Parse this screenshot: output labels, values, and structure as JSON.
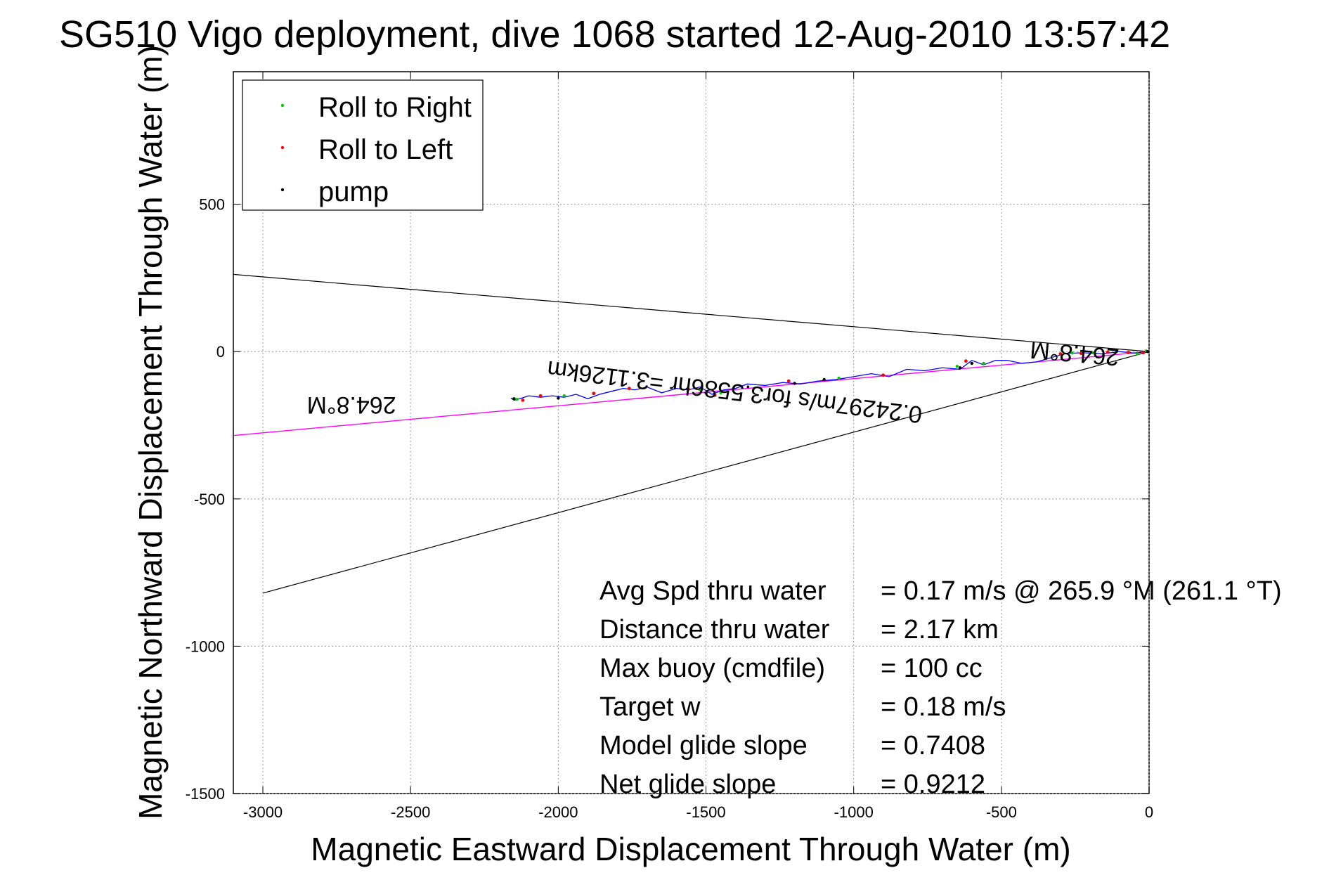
{
  "chart_data": {
    "type": "scatter",
    "title": "SG510 Vigo deployment, dive 1068 started 12-Aug-2010 13:57:42",
    "xlabel": "Magnetic Eastward Displacement Through Water (m)",
    "ylabel": "Magnetic Northward Displacement Through Water (m)",
    "xlim": [
      -3100,
      0
    ],
    "ylim": [
      -1500,
      950
    ],
    "xticks": [
      -3000,
      -2500,
      -2000,
      -1500,
      -1000,
      -500,
      0
    ],
    "yticks": [
      -1500,
      -1000,
      -500,
      0,
      500
    ],
    "grid": true,
    "legend_position": "top-left",
    "legend": [
      {
        "label": "Roll to Right",
        "color": "#00cc00"
      },
      {
        "label": "Roll to Left",
        "color": "#ff0000"
      },
      {
        "label": "pump",
        "color": "#000000"
      }
    ],
    "cone_lines": [
      {
        "color": "#000000",
        "x": [
          -3100,
          0
        ],
        "y": [
          262,
          0
        ]
      },
      {
        "color": "#000000",
        "x": [
          -3000,
          0
        ],
        "y": [
          -820,
          0
        ]
      }
    ],
    "heading_line": {
      "color": "#ff00ff",
      "x": [
        -3100,
        0
      ],
      "y": [
        -285,
        0
      ]
    },
    "track": {
      "color": "#0000ff",
      "x": [
        0,
        -50,
        -100,
        -160,
        -220,
        -280,
        -330,
        -380,
        -430,
        -480,
        -520,
        -560,
        -600,
        -640,
        -700,
        -760,
        -820,
        -880,
        -940,
        -1000,
        -1060,
        -1120,
        -1180,
        -1240,
        -1300,
        -1360,
        -1400,
        -1440,
        -1480,
        -1520,
        -1560,
        -1600,
        -1650,
        -1700,
        -1740,
        -1780,
        -1820,
        -1860,
        -1900,
        -1940,
        -1980,
        -2020,
        -2060,
        -2100,
        -2130,
        -2150,
        -2160
      ],
      "y": [
        0,
        -5,
        0,
        -8,
        -4,
        -6,
        -20,
        -35,
        -40,
        -30,
        -30,
        -45,
        -30,
        -60,
        -55,
        -65,
        -60,
        -85,
        -75,
        -85,
        -95,
        -100,
        -110,
        -105,
        -115,
        -110,
        -125,
        -130,
        -145,
        -120,
        -130,
        -125,
        -140,
        -120,
        -130,
        -125,
        -135,
        -145,
        -160,
        -145,
        -155,
        -150,
        -155,
        -150,
        -160,
        -165,
        -158
      ]
    },
    "markers": {
      "roll_right": {
        "color": "#00cc00",
        "x": [
          -10,
          -40,
          -110,
          -190,
          -260,
          -560,
          -650,
          -1050,
          -1450,
          -1520,
          -1980,
          -2140
        ],
        "y": [
          2,
          -8,
          0,
          -4,
          -5,
          -40,
          -50,
          -90,
          -140,
          -130,
          -150,
          -162
        ]
      },
      "roll_left": {
        "color": "#ff0000",
        "x": [
          -20,
          -70,
          -140,
          -230,
          -300,
          -620,
          -900,
          -1220,
          -1470,
          -1560,
          -1760,
          -1880,
          -2060,
          -2120
        ],
        "y": [
          -4,
          -3,
          -2,
          -6,
          -8,
          -32,
          -80,
          -100,
          -148,
          -128,
          -125,
          -142,
          -150,
          -165
        ],
        "size": 2.4
      },
      "pump": {
        "color": "#000000",
        "x": [
          -5,
          -600,
          -640,
          -1100,
          -1200,
          -1500,
          -2000,
          -2150
        ],
        "y": [
          0,
          -40,
          -55,
          -95,
          -108,
          -140,
          -158,
          -160
        ]
      }
    },
    "annotations": [
      {
        "text": "264.8°M",
        "x": -2700,
        "y": -155,
        "rotate": 180
      },
      {
        "text": "264.8°M",
        "x": -250,
        "y": 20,
        "rotate": 185
      },
      {
        "text": "0.24297m/s for3.5586hr =3.1126km",
        "x": -1400,
        "y": -110,
        "rotate": 187
      }
    ],
    "stats": [
      {
        "label": "Avg Spd thru water",
        "value": "=  0.17 m/s @ 265.9 °M (261.1 °T)"
      },
      {
        "label": "Distance thru water",
        "value": "=  2.17 km"
      },
      {
        "label": "Max buoy (cmdfile)",
        "value": "= 100 cc"
      },
      {
        "label": "Target w",
        "value": "= 0.18 m/s"
      },
      {
        "label": "Model glide slope",
        "value": "= 0.7408"
      },
      {
        "label": "Net glide slope",
        "value": "= 0.9212"
      }
    ]
  }
}
